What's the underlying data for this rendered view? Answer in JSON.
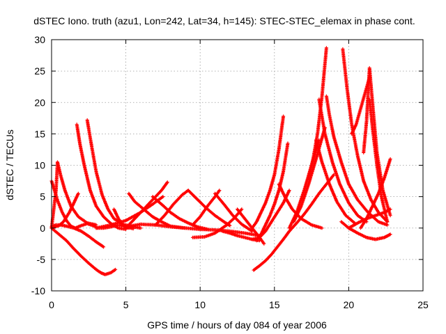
{
  "chart_data": {
    "type": "scatter",
    "title": "dSTEC Iono. truth (azu1, Lon=242, Lat=34, h=145): STEC-STEC_elemax in phase cont.",
    "xlabel": "GPS time / hours of day 084 of year 2006",
    "ylabel": "dSTEC  / TECUs",
    "xlim": [
      0,
      25
    ],
    "ylim": [
      -10,
      30
    ],
    "xticks": [
      0,
      5,
      10,
      15,
      20,
      25
    ],
    "yticks": [
      -10,
      -5,
      0,
      5,
      10,
      15,
      20,
      25,
      30
    ],
    "grid": true,
    "marker": "+",
    "color": "#ff0000",
    "series": [
      {
        "x": [
          0.0,
          0.3,
          0.6,
          1.0,
          1.5,
          2.0,
          2.5,
          3.0,
          3.5
        ],
        "y": [
          0.2,
          0.5,
          0.5,
          0.3,
          0.0,
          -0.5,
          -1.3,
          -2.2,
          -3.0
        ]
      },
      {
        "x": [
          0.0,
          0.5,
          1.0,
          1.5,
          2.0,
          2.5,
          3.0,
          3.3,
          3.6,
          4.0,
          4.3
        ],
        "y": [
          0.0,
          -1.0,
          -2.0,
          -3.3,
          -4.5,
          -5.6,
          -6.6,
          -7.1,
          -7.4,
          -7.1,
          -6.6
        ]
      },
      {
        "x": [
          0.0,
          0.2,
          0.4,
          0.7,
          1.0,
          1.3,
          1.6,
          2.0,
          2.4,
          3.0
        ],
        "y": [
          7.5,
          6.0,
          4.4,
          2.6,
          1.2,
          0.3,
          0.0,
          0.4,
          0.7,
          0.2
        ]
      },
      {
        "x": [
          0.0,
          0.2,
          0.5,
          0.8,
          1.2,
          1.5,
          1.8
        ],
        "y": [
          0.0,
          0.2,
          0.4,
          1.0,
          2.5,
          4.0,
          5.5
        ]
      },
      {
        "x": [
          0.4,
          0.6,
          0.9,
          1.3,
          1.8,
          2.4,
          3.0
        ],
        "y": [
          10.5,
          8.5,
          6.0,
          3.5,
          1.8,
          0.8,
          0.5
        ]
      },
      {
        "x": [
          0.4,
          0.3,
          0.15,
          0.0
        ],
        "y": [
          10.5,
          6.0,
          3.0,
          0.0
        ]
      },
      {
        "x": [
          1.7,
          1.9,
          2.2,
          2.6,
          3.0,
          3.5,
          4.0,
          4.5,
          5.0
        ],
        "y": [
          16.5,
          13.5,
          10.0,
          6.0,
          3.5,
          1.8,
          0.7,
          0.0,
          -0.2
        ]
      },
      {
        "x": [
          2.4,
          2.7,
          3.0,
          3.4,
          3.8,
          4.2,
          4.8,
          5.5,
          6.0
        ],
        "y": [
          17.2,
          13.0,
          9.0,
          5.3,
          3.0,
          1.5,
          0.6,
          0.2,
          0.0
        ]
      },
      {
        "x": [
          3.0,
          3.5,
          4.0,
          4.5,
          5.0,
          5.5
        ],
        "y": [
          0.0,
          0.0,
          0.2,
          0.5,
          0.2,
          -0.1
        ]
      },
      {
        "x": [
          4.2,
          4.5,
          4.8,
          5.2
        ],
        "y": [
          3.0,
          1.5,
          0.5,
          0.0
        ]
      },
      {
        "x": [
          3.0,
          4.0,
          5.0,
          6.0,
          6.8,
          7.5
        ],
        "y": [
          0.0,
          0.5,
          1.2,
          2.5,
          3.8,
          5.0
        ]
      },
      {
        "x": [
          5.0,
          5.5,
          6.0,
          7.0,
          8.0,
          9.0,
          10.0,
          11.0,
          12.0,
          13.0,
          14.0
        ],
        "y": [
          0.0,
          0.4,
          0.6,
          0.5,
          0.2,
          0.0,
          -0.2,
          -0.3,
          -0.5,
          -0.8,
          -1.2
        ]
      },
      {
        "x": [
          5.0,
          5.6,
          6.2,
          6.8,
          7.4,
          7.8
        ],
        "y": [
          0.0,
          1.5,
          3.0,
          4.5,
          6.0,
          7.3
        ]
      },
      {
        "x": [
          5.2,
          5.6,
          6.2,
          6.8,
          7.4,
          8.0,
          9.0
        ],
        "y": [
          5.5,
          4.2,
          3.0,
          1.8,
          1.0,
          0.3,
          0.0
        ]
      },
      {
        "x": [
          6.8,
          7.4,
          8.0,
          8.6,
          9.2,
          9.8,
          10.5
        ],
        "y": [
          5.0,
          3.8,
          2.5,
          1.5,
          0.8,
          0.2,
          -0.2
        ]
      },
      {
        "x": [
          7.0,
          7.6,
          8.2,
          8.8,
          9.2
        ],
        "y": [
          0.5,
          2.0,
          3.8,
          5.3,
          6.0
        ]
      },
      {
        "x": [
          9.2,
          9.8,
          10.4,
          11.0,
          11.6,
          12.0
        ],
        "y": [
          6.0,
          4.6,
          3.2,
          2.0,
          1.0,
          0.4
        ]
      },
      {
        "x": [
          9.5,
          10.0,
          10.5,
          11.0,
          11.3
        ],
        "y": [
          0.5,
          1.8,
          3.5,
          5.0,
          6.0
        ]
      },
      {
        "x": [
          11.0,
          11.6,
          12.2,
          12.8,
          13.5
        ],
        "y": [
          5.5,
          3.8,
          2.0,
          0.6,
          -0.5
        ]
      },
      {
        "x": [
          9.5,
          10.3,
          11.0,
          11.8,
          12.3,
          12.8
        ],
        "y": [
          -1.5,
          -1.4,
          -0.8,
          0.5,
          1.6,
          3.0
        ]
      },
      {
        "x": [
          11.5,
          12.0,
          12.5,
          13.0,
          13.5,
          14.0
        ],
        "y": [
          -0.5,
          -0.8,
          -1.2,
          -1.5,
          -1.8,
          -2.0
        ]
      },
      {
        "x": [
          12.5,
          13.0,
          13.5,
          14.0,
          14.3
        ],
        "y": [
          3.0,
          1.5,
          0.0,
          -1.5,
          -2.5
        ]
      },
      {
        "x": [
          13.6,
          14.0,
          14.4,
          14.8,
          15.2,
          15.6,
          16.0,
          16.5,
          17.0,
          17.5,
          18.0,
          18.5,
          19.0
        ],
        "y": [
          -6.7,
          -6.0,
          -5.2,
          -4.2,
          -3.0,
          -1.8,
          -0.5,
          0.8,
          2.2,
          3.8,
          5.5,
          7.0,
          8.5
        ]
      },
      {
        "x": [
          13.5,
          13.8,
          14.1,
          14.4,
          14.7,
          15.0,
          15.3,
          15.6
        ],
        "y": [
          0.0,
          1.0,
          2.5,
          4.0,
          6.0,
          8.5,
          12.5,
          17.8
        ]
      },
      {
        "x": [
          13.8,
          14.1,
          14.4,
          14.7,
          15.0,
          15.3,
          15.6,
          15.9
        ],
        "y": [
          -2.0,
          -1.0,
          0.5,
          2.0,
          3.8,
          6.0,
          9.0,
          13.5
        ]
      },
      {
        "x": [
          13.5,
          14.0,
          14.4,
          14.8,
          15.2,
          15.6,
          16.0
        ],
        "y": [
          -1.8,
          -1.5,
          -0.5,
          1.0,
          2.5,
          4.0,
          6.0
        ]
      },
      {
        "x": [
          15.3,
          15.7,
          16.2,
          16.8,
          17.5,
          18.2
        ],
        "y": [
          7.0,
          5.0,
          3.0,
          1.5,
          0.5,
          0.0
        ]
      },
      {
        "x": [
          16.0,
          16.5,
          17.0,
          17.5,
          18.0
        ],
        "y": [
          0.0,
          2.5,
          6.0,
          10.0,
          14.0
        ]
      },
      {
        "x": [
          16.3,
          16.8,
          17.3,
          17.8,
          18.4
        ],
        "y": [
          1.0,
          3.5,
          7.0,
          11.0,
          16.0
        ]
      },
      {
        "x": [
          17.3,
          17.6,
          17.9,
          18.2,
          18.5
        ],
        "y": [
          8.0,
          11.0,
          15.0,
          21.0,
          28.7
        ]
      },
      {
        "x": [
          17.8,
          18.2,
          18.7,
          19.2,
          19.8,
          20.4
        ],
        "y": [
          14.0,
          10.5,
          7.0,
          4.2,
          2.0,
          0.8
        ]
      },
      {
        "x": [
          18.0,
          18.4,
          18.9,
          19.4,
          20.0,
          20.6,
          21.2
        ],
        "y": [
          20.5,
          15.0,
          10.5,
          7.0,
          4.0,
          2.0,
          1.0
        ]
      },
      {
        "x": [
          18.5,
          18.7,
          19.0,
          19.5,
          20.0,
          20.6,
          21.3,
          22.0,
          22.6
        ],
        "y": [
          21.0,
          18.0,
          14.5,
          10.5,
          7.0,
          4.5,
          2.5,
          1.0,
          0.5
        ]
      },
      {
        "x": [
          19.6,
          19.9,
          20.2,
          20.6,
          21.0,
          21.5,
          22.0,
          22.6
        ],
        "y": [
          28.5,
          22.0,
          16.5,
          11.5,
          7.5,
          4.5,
          2.5,
          1.0
        ]
      },
      {
        "x": [
          20.2,
          20.5,
          20.8,
          21.1,
          21.4
        ],
        "y": [
          15.0,
          16.5,
          19.0,
          21.5,
          24.0
        ]
      },
      {
        "x": [
          19.5,
          20.0,
          20.6,
          21.2,
          21.8,
          22.4,
          22.8
        ],
        "y": [
          1.0,
          0.0,
          -0.8,
          -1.5,
          -1.8,
          -1.5,
          -1.0
        ]
      },
      {
        "x": [
          21.0,
          21.2,
          21.4,
          21.6,
          21.9,
          22.3,
          22.8
        ],
        "y": [
          12.0,
          17.0,
          25.5,
          20.0,
          12.0,
          6.0,
          2.0
        ]
      },
      {
        "x": [
          21.4,
          21.6,
          21.9,
          22.2,
          22.6
        ],
        "y": [
          20.5,
          16.0,
          10.0,
          5.0,
          1.0
        ]
      },
      {
        "x": [
          20.8,
          21.2,
          21.6,
          22.0,
          22.4,
          22.8
        ],
        "y": [
          0.0,
          1.5,
          3.5,
          5.5,
          8.0,
          11.0
        ]
      },
      {
        "x": [
          20.0,
          20.6,
          21.2,
          21.8,
          22.4,
          22.8
        ],
        "y": [
          0.0,
          0.8,
          1.5,
          2.0,
          2.5,
          3.0
        ]
      }
    ]
  }
}
